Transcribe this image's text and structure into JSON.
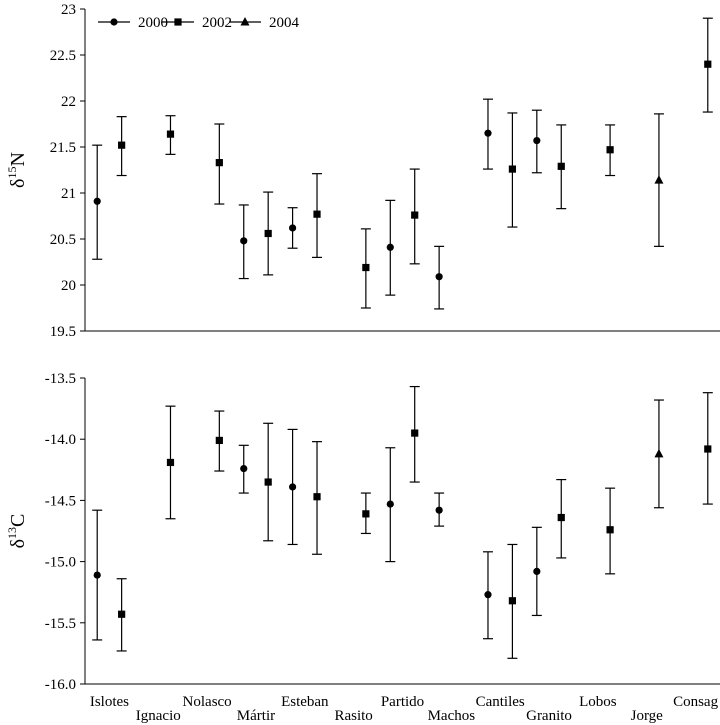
{
  "chart_data": [
    {
      "type": "scatter",
      "panel": "top",
      "ylabel": {
        "prefix": "δ",
        "sup": "15",
        "suffix": "N"
      },
      "ylim": [
        19.5,
        23
      ],
      "yticks": [
        "19.5",
        "20",
        "20.5",
        "21",
        "21.5",
        "22",
        "22.5",
        "23"
      ],
      "ytick_values": [
        19.5,
        20,
        20.5,
        21,
        21.5,
        22,
        22.5,
        23
      ],
      "legend": {
        "placement": "top-left",
        "entries": [
          {
            "label": "2000",
            "marker": "circle"
          },
          {
            "label": "2002",
            "marker": "square"
          },
          {
            "label": "2004",
            "marker": "triangle"
          }
        ]
      },
      "points": [
        {
          "site": "Islotes",
          "year": "2000",
          "marker": "circle",
          "x": 0.75,
          "y": 20.91,
          "lo": 20.28,
          "hi": 21.52
        },
        {
          "site": "Islotes",
          "year": "2002",
          "marker": "square",
          "x": 1.25,
          "y": 21.52,
          "lo": 21.19,
          "hi": 21.83
        },
        {
          "site": "Ignacio",
          "year": "2002",
          "marker": "square",
          "x": 2.25,
          "y": 21.64,
          "lo": 21.42,
          "hi": 21.84
        },
        {
          "site": "Nolasco",
          "year": "2002",
          "marker": "square",
          "x": 3.25,
          "y": 21.33,
          "lo": 20.88,
          "hi": 21.75
        },
        {
          "site": "Mártir",
          "year": "2000",
          "marker": "circle",
          "x": 3.75,
          "y": 20.48,
          "lo": 20.07,
          "hi": 20.87
        },
        {
          "site": "Mártir",
          "year": "2002",
          "marker": "square",
          "x": 4.25,
          "y": 20.56,
          "lo": 20.11,
          "hi": 21.01
        },
        {
          "site": "Esteban",
          "year": "2000",
          "marker": "circle",
          "x": 4.75,
          "y": 20.62,
          "lo": 20.4,
          "hi": 20.84
        },
        {
          "site": "Esteban",
          "year": "2002",
          "marker": "square",
          "x": 5.25,
          "y": 20.77,
          "lo": 20.3,
          "hi": 21.21
        },
        {
          "site": "Rasito",
          "year": "2002",
          "marker": "square",
          "x": 6.25,
          "y": 20.19,
          "lo": 19.75,
          "hi": 20.61
        },
        {
          "site": "Partido",
          "year": "2000",
          "marker": "circle",
          "x": 6.75,
          "y": 20.41,
          "lo": 19.89,
          "hi": 20.92
        },
        {
          "site": "Partido",
          "year": "2002",
          "marker": "square",
          "x": 7.25,
          "y": 20.76,
          "lo": 20.23,
          "hi": 21.26
        },
        {
          "site": "Machos",
          "year": "2000",
          "marker": "circle",
          "x": 7.75,
          "y": 20.09,
          "lo": 19.74,
          "hi": 20.42
        },
        {
          "site": "Cantiles",
          "year": "2000",
          "marker": "circle",
          "x": 8.75,
          "y": 21.65,
          "lo": 21.26,
          "hi": 22.02
        },
        {
          "site": "Cantiles",
          "year": "2002",
          "marker": "square",
          "x": 9.25,
          "y": 21.26,
          "lo": 20.63,
          "hi": 21.87
        },
        {
          "site": "Granito",
          "year": "2000",
          "marker": "circle",
          "x": 9.75,
          "y": 21.57,
          "lo": 21.22,
          "hi": 21.9
        },
        {
          "site": "Granito",
          "year": "2002",
          "marker": "square",
          "x": 10.25,
          "y": 21.29,
          "lo": 20.83,
          "hi": 21.74
        },
        {
          "site": "Lobos",
          "year": "2002",
          "marker": "square",
          "x": 11.25,
          "y": 21.47,
          "lo": 21.19,
          "hi": 21.74
        },
        {
          "site": "Jorge",
          "year": "2004",
          "marker": "triangle",
          "x": 12.25,
          "y": 21.14,
          "lo": 20.42,
          "hi": 21.86
        },
        {
          "site": "Consag",
          "year": "2002",
          "marker": "square",
          "x": 13.25,
          "y": 22.4,
          "lo": 21.88,
          "hi": 22.9
        }
      ]
    },
    {
      "type": "scatter",
      "panel": "bottom",
      "ylabel": {
        "prefix": "δ",
        "sup": "13",
        "suffix": "C"
      },
      "ylim": [
        -16.0,
        -13.5
      ],
      "yticks": [
        "-16.0",
        "-15.5",
        "-15.0",
        "-14.5",
        "-14.0",
        "-13.5"
      ],
      "ytick_values": [
        -16.0,
        -15.5,
        -15.0,
        -14.5,
        -14.0,
        -13.5
      ],
      "categories": [
        "Islotes",
        "Ignacio",
        "Nolasco",
        "Mártir",
        "Esteban",
        "Rasito",
        "Partido",
        "Machos",
        "Cantiles",
        "Granito",
        "Lobos",
        "Jorge",
        "Consag"
      ],
      "category_positions": [
        1,
        2,
        3,
        4,
        5,
        6,
        7,
        8,
        9,
        10,
        11,
        12,
        13
      ],
      "category_label_row": [
        0,
        1,
        0,
        1,
        0,
        1,
        0,
        1,
        0,
        1,
        0,
        1,
        0
      ],
      "points": [
        {
          "site": "Islotes",
          "year": "2000",
          "marker": "circle",
          "x": 0.75,
          "y": -15.11,
          "lo": -15.64,
          "hi": -14.58
        },
        {
          "site": "Islotes",
          "year": "2002",
          "marker": "square",
          "x": 1.25,
          "y": -15.43,
          "lo": -15.73,
          "hi": -15.14
        },
        {
          "site": "Ignacio",
          "year": "2002",
          "marker": "square",
          "x": 2.25,
          "y": -14.19,
          "lo": -14.65,
          "hi": -13.73
        },
        {
          "site": "Nolasco",
          "year": "2002",
          "marker": "square",
          "x": 3.25,
          "y": -14.01,
          "lo": -14.26,
          "hi": -13.77
        },
        {
          "site": "Mártir",
          "year": "2000",
          "marker": "circle",
          "x": 3.75,
          "y": -14.24,
          "lo": -14.44,
          "hi": -14.05
        },
        {
          "site": "Mártir",
          "year": "2002",
          "marker": "square",
          "x": 4.25,
          "y": -14.35,
          "lo": -14.83,
          "hi": -13.87
        },
        {
          "site": "Esteban",
          "year": "2000",
          "marker": "circle",
          "x": 4.75,
          "y": -14.39,
          "lo": -14.86,
          "hi": -13.92
        },
        {
          "site": "Esteban",
          "year": "2002",
          "marker": "square",
          "x": 5.25,
          "y": -14.47,
          "lo": -14.94,
          "hi": -14.02
        },
        {
          "site": "Rasito",
          "year": "2002",
          "marker": "square",
          "x": 6.25,
          "y": -14.61,
          "lo": -14.77,
          "hi": -14.44
        },
        {
          "site": "Partido",
          "year": "2000",
          "marker": "circle",
          "x": 6.75,
          "y": -14.53,
          "lo": -15.0,
          "hi": -14.07
        },
        {
          "site": "Partido",
          "year": "2002",
          "marker": "square",
          "x": 7.25,
          "y": -13.95,
          "lo": -14.35,
          "hi": -13.57
        },
        {
          "site": "Machos",
          "year": "2000",
          "marker": "circle",
          "x": 7.75,
          "y": -14.58,
          "lo": -14.71,
          "hi": -14.44
        },
        {
          "site": "Cantiles",
          "year": "2000",
          "marker": "circle",
          "x": 8.75,
          "y": -15.27,
          "lo": -15.63,
          "hi": -14.92
        },
        {
          "site": "Cantiles",
          "year": "2002",
          "marker": "square",
          "x": 9.25,
          "y": -15.32,
          "lo": -15.79,
          "hi": -14.86
        },
        {
          "site": "Granito",
          "year": "2000",
          "marker": "circle",
          "x": 9.75,
          "y": -15.08,
          "lo": -15.44,
          "hi": -14.72
        },
        {
          "site": "Granito",
          "year": "2002",
          "marker": "square",
          "x": 10.25,
          "y": -14.64,
          "lo": -14.97,
          "hi": -14.33
        },
        {
          "site": "Lobos",
          "year": "2002",
          "marker": "square",
          "x": 11.25,
          "y": -14.74,
          "lo": -15.1,
          "hi": -14.4
        },
        {
          "site": "Jorge",
          "year": "2004",
          "marker": "triangle",
          "x": 12.25,
          "y": -14.12,
          "lo": -14.56,
          "hi": -13.68
        },
        {
          "site": "Consag",
          "year": "2002",
          "marker": "square",
          "x": 13.25,
          "y": -14.08,
          "lo": -14.53,
          "hi": -13.62
        }
      ]
    }
  ]
}
